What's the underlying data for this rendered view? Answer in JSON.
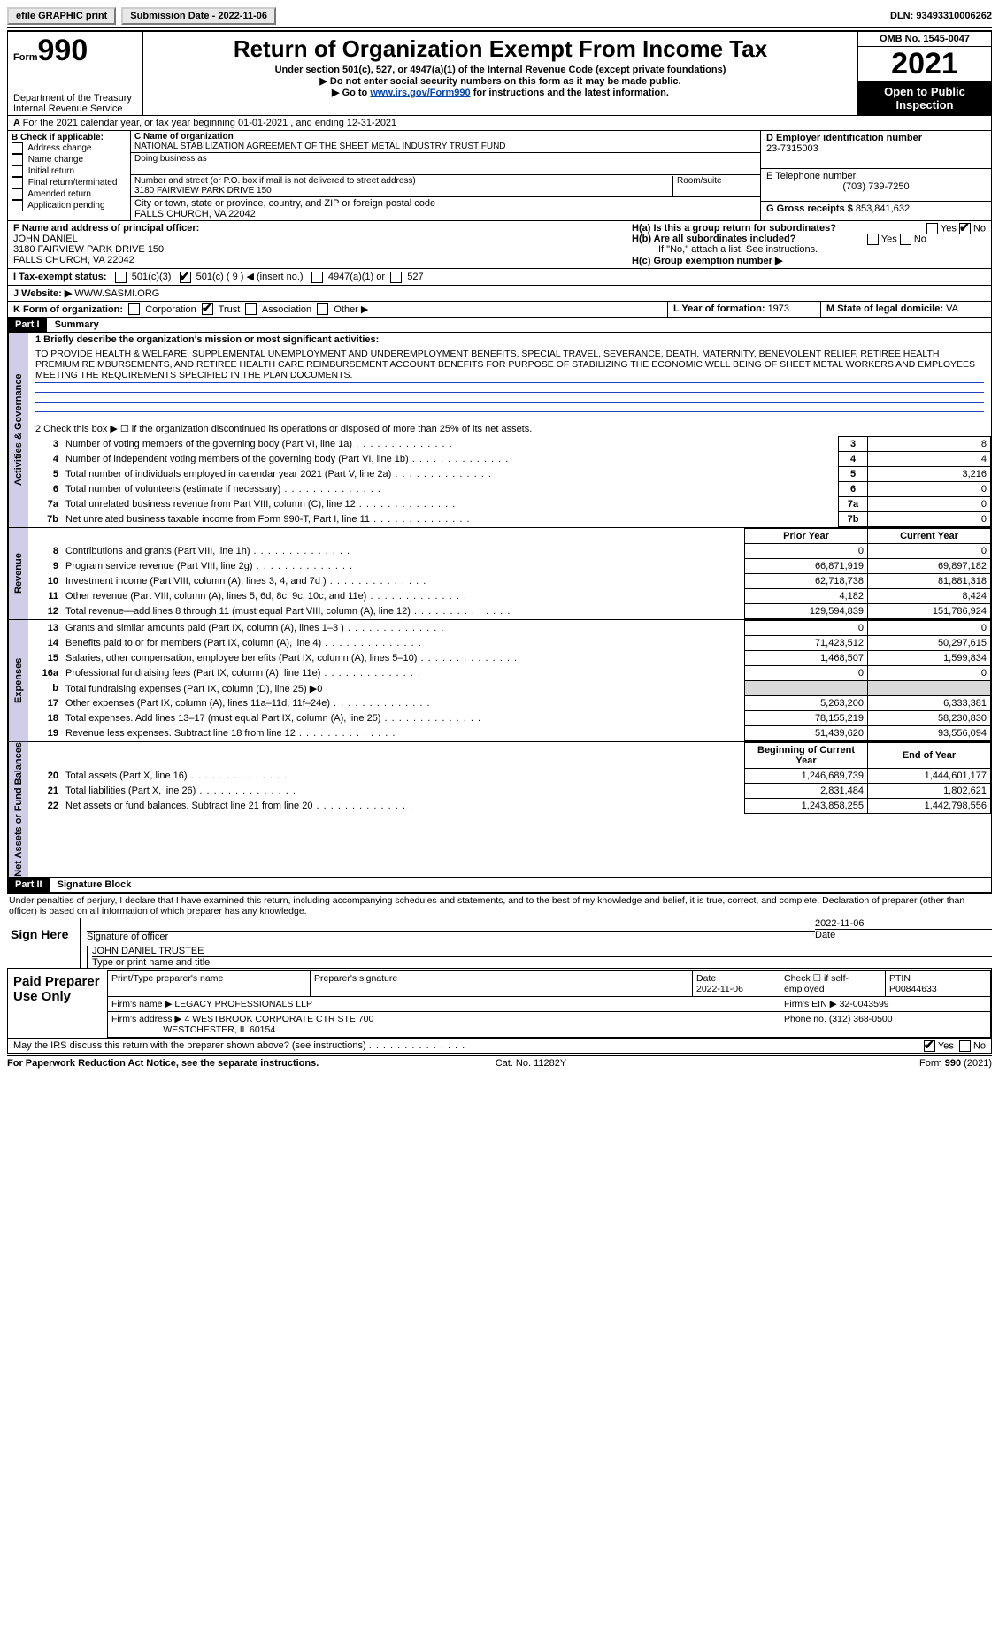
{
  "topbar": {
    "efile": "efile GRAPHIC print",
    "subdate_lbl": "Submission Date - ",
    "subdate": "2022-11-06",
    "dln_lbl": "DLN: ",
    "dln": "93493310006262"
  },
  "header": {
    "form_lbl": "Form",
    "form_no": "990",
    "dept": "Department of the Treasury",
    "irs": "Internal Revenue Service",
    "title": "Return of Organization Exempt From Income Tax",
    "sub1": "Under section 501(c), 527, or 4947(a)(1) of the Internal Revenue Code (except private foundations)",
    "sub2": "Do not enter social security numbers on this form as it may be made public.",
    "sub3_pre": "Go to ",
    "sub3_link": "www.irs.gov/Form990",
    "sub3_post": " for instructions and the latest information.",
    "omb": "OMB No. 1545-0047",
    "year": "2021",
    "openpub": "Open to Public Inspection"
  },
  "lineA": "For the 2021 calendar year, or tax year beginning 01-01-2021     , and ending 12-31-2021",
  "boxB": {
    "hdr": "B Check if applicable:",
    "opts": [
      "Address change",
      "Name change",
      "Initial return",
      "Final return/terminated",
      "Amended return",
      "Application pending"
    ]
  },
  "boxC": {
    "lbl": "C Name of organization",
    "name": "NATIONAL STABILIZATION AGREEMENT OF THE SHEET METAL INDUSTRY TRUST FUND",
    "dba_lbl": "Doing business as",
    "addr_lbl": "Number and street (or P.O. box if mail is not delivered to street address)",
    "room_lbl": "Room/suite",
    "addr": "3180 FAIRVIEW PARK DRIVE 150",
    "city_lbl": "City or town, state or province, country, and ZIP or foreign postal code",
    "city": "FALLS CHURCH, VA   22042"
  },
  "boxD": {
    "lbl": "D Employer identification number",
    "val": "23-7315003"
  },
  "boxE": {
    "lbl": "E Telephone number",
    "val": "(703) 739-7250"
  },
  "boxG": {
    "lbl": "G Gross receipts $",
    "val": "853,841,632"
  },
  "boxF": {
    "lbl": "F  Name and address of principal officer:",
    "name": "JOHN DANIEL",
    "addr1": "3180 FAIRVIEW PARK DRIVE 150",
    "addr2": "FALLS CHURCH, VA   22042"
  },
  "boxH": {
    "a": "H(a)  Is this a group return for subordinates?",
    "b": "H(b)  Are all subordinates included?",
    "bnote": "If \"No,\" attach a list. See instructions.",
    "c": "H(c)  Group exemption number ▶"
  },
  "rowI": {
    "lbl": "I    Tax-exempt status:",
    "o1": "501(c)(3)",
    "o2": "501(c) ( 9 ) ◀ (insert no.)",
    "o3": "4947(a)(1) or",
    "o4": "527"
  },
  "rowJ": {
    "lbl": "J   Website: ▶",
    "val": "WWW.SASMI.ORG"
  },
  "rowK": "K Form of organization:",
  "rowK_opts": [
    "Corporation",
    "Trust",
    "Association",
    "Other ▶"
  ],
  "rowL": {
    "lbl": "L Year of formation: ",
    "val": "1973"
  },
  "rowM": {
    "lbl": "M State of legal domicile: ",
    "val": "VA"
  },
  "part1": {
    "bar": "Part I",
    "title": "Summary"
  },
  "summary": {
    "line1_lbl": "1  Briefly describe the organization's mission or most significant activities:",
    "mission": "TO PROVIDE HEALTH & WELFARE, SUPPLEMENTAL UNEMPLOYMENT AND UNDEREMPLOYMENT BENEFITS, SPECIAL TRAVEL, SEVERANCE, DEATH, MATERNITY, BENEVOLENT RELIEF, RETIREE HEALTH PREMIUM REIMBURSEMENTS, AND RETIREE HEALTH CARE REIMBURSEMENT ACCOUNT BENEFITS FOR PURPOSE OF STABILIZING THE ECONOMIC WELL BEING OF SHEET METAL WORKERS AND EMPLOYEES MEETING THE REQUIREMENTS SPECIFIED IN THE PLAN DOCUMENTS.",
    "line2": "2    Check this box ▶ ☐  if the organization discontinued its operations or disposed of more than 25% of its net assets.",
    "govrows": [
      {
        "n": "3",
        "t": "Number of voting members of the governing body (Part VI, line 1a)",
        "v": "8"
      },
      {
        "n": "4",
        "t": "Number of independent voting members of the governing body (Part VI, line 1b)",
        "v": "4"
      },
      {
        "n": "5",
        "t": "Total number of individuals employed in calendar year 2021 (Part V, line 2a)",
        "v": "3,216"
      },
      {
        "n": "6",
        "t": "Total number of volunteers (estimate if necessary)",
        "v": "0"
      },
      {
        "n": "7a",
        "t": "Total unrelated business revenue from Part VIII, column (C), line 12",
        "v": "0"
      },
      {
        "n": "7b",
        "t": "Net unrelated business taxable income from Form 990-T, Part I, line 11",
        "v": "0"
      }
    ],
    "col_prior": "Prior Year",
    "col_curr": "Current Year",
    "revrows": [
      {
        "n": "8",
        "t": "Contributions and grants (Part VIII, line 1h)",
        "p": "0",
        "c": "0"
      },
      {
        "n": "9",
        "t": "Program service revenue (Part VIII, line 2g)",
        "p": "66,871,919",
        "c": "69,897,182"
      },
      {
        "n": "10",
        "t": "Investment income (Part VIII, column (A), lines 3, 4, and 7d )",
        "p": "62,718,738",
        "c": "81,881,318"
      },
      {
        "n": "11",
        "t": "Other revenue (Part VIII, column (A), lines 5, 6d, 8c, 9c, 10c, and 11e)",
        "p": "4,182",
        "c": "8,424"
      },
      {
        "n": "12",
        "t": "Total revenue—add lines 8 through 11 (must equal Part VIII, column (A), line 12)",
        "p": "129,594,839",
        "c": "151,786,924"
      }
    ],
    "exprows": [
      {
        "n": "13",
        "t": "Grants and similar amounts paid (Part IX, column (A), lines 1–3 )",
        "p": "0",
        "c": "0"
      },
      {
        "n": "14",
        "t": "Benefits paid to or for members (Part IX, column (A), line 4)",
        "p": "71,423,512",
        "c": "50,297,615"
      },
      {
        "n": "15",
        "t": "Salaries, other compensation, employee benefits (Part IX, column (A), lines 5–10)",
        "p": "1,468,507",
        "c": "1,599,834"
      },
      {
        "n": "16a",
        "t": "Professional fundraising fees (Part IX, column (A), line 11e)",
        "p": "0",
        "c": "0"
      },
      {
        "n": "b",
        "t": "Total fundraising expenses (Part IX, column (D), line 25) ▶0",
        "p": "SHADE",
        "c": "SHADE"
      },
      {
        "n": "17",
        "t": "Other expenses (Part IX, column (A), lines 11a–11d, 11f–24e)",
        "p": "5,263,200",
        "c": "6,333,381"
      },
      {
        "n": "18",
        "t": "Total expenses. Add lines 13–17 (must equal Part IX, column (A), line 25)",
        "p": "78,155,219",
        "c": "58,230,830"
      },
      {
        "n": "19",
        "t": "Revenue less expenses. Subtract line 18 from line 12",
        "p": "51,439,620",
        "c": "93,556,094"
      }
    ],
    "col_beg": "Beginning of Current Year",
    "col_end": "End of Year",
    "netrows": [
      {
        "n": "20",
        "t": "Total assets (Part X, line 16)",
        "p": "1,246,689,739",
        "c": "1,444,601,177"
      },
      {
        "n": "21",
        "t": "Total liabilities (Part X, line 26)",
        "p": "2,831,484",
        "c": "1,802,621"
      },
      {
        "n": "22",
        "t": "Net assets or fund balances. Subtract line 21 from line 20",
        "p": "1,243,858,255",
        "c": "1,442,798,556"
      }
    ],
    "sidelabels": {
      "gov": "Activities & Governance",
      "rev": "Revenue",
      "exp": "Expenses",
      "net": "Net Assets or Fund Balances"
    }
  },
  "part2": {
    "bar": "Part II",
    "title": "Signature Block"
  },
  "sig": {
    "perjury": "Under penalties of perjury, I declare that I have examined this return, including accompanying schedules and statements, and to the best of my knowledge and belief, it is true, correct, and complete. Declaration of preparer (other than officer) is based on all information of which preparer has any knowledge.",
    "signhere": "Sign Here",
    "sig_of_officer": "Signature of officer",
    "date": "2022-11-06",
    "date_lbl": "Date",
    "typed": "JOHN DANIEL TRUSTEE",
    "typed_lbl": "Type or print name and title"
  },
  "prep": {
    "title": "Paid Preparer Use Only",
    "h1": "Print/Type preparer's name",
    "h2": "Preparer's signature",
    "h3_lbl": "Date",
    "h3": "2022-11-06",
    "h4": "Check ☐ if self-employed",
    "h5_lbl": "PTIN",
    "h5": "P00844633",
    "firm_lbl": "Firm's name    ▶",
    "firm": "LEGACY PROFESSIONALS LLP",
    "ein_lbl": "Firm's EIN ▶",
    "ein": "32-0043599",
    "addr_lbl": "Firm's address ▶",
    "addr1": "4 WESTBROOK CORPORATE CTR STE 700",
    "addr2": "WESTCHESTER, IL   60154",
    "phone_lbl": "Phone no.",
    "phone": "(312) 368-0500",
    "discuss": "May the IRS discuss this return with the preparer shown above? (see instructions)"
  },
  "footer": {
    "pra": "For Paperwork Reduction Act Notice, see the separate instructions.",
    "cat": "Cat. No. 11282Y",
    "form": "Form 990 (2021)"
  }
}
